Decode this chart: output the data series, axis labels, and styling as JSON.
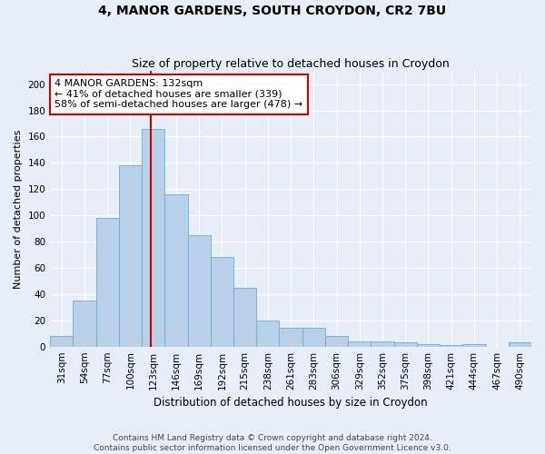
{
  "title1": "4, MANOR GARDENS, SOUTH CROYDON, CR2 7BU",
  "title2": "Size of property relative to detached houses in Croydon",
  "xlabel": "Distribution of detached houses by size in Croydon",
  "ylabel": "Number of detached properties",
  "categories": [
    "31sqm",
    "54sqm",
    "77sqm",
    "100sqm",
    "123sqm",
    "146sqm",
    "169sqm",
    "192sqm",
    "215sqm",
    "238sqm",
    "261sqm",
    "283sqm",
    "306sqm",
    "329sqm",
    "352sqm",
    "375sqm",
    "398sqm",
    "421sqm",
    "444sqm",
    "467sqm",
    "490sqm"
  ],
  "values": [
    8,
    35,
    98,
    138,
    166,
    116,
    85,
    68,
    45,
    20,
    14,
    14,
    8,
    4,
    4,
    3,
    2,
    1,
    2,
    0,
    3
  ],
  "bar_color": "#b8d0e8",
  "bar_edge_color": "#6aaed6",
  "bar_edge_width": 0.6,
  "annotation_text": "4 MANOR GARDENS: 132sqm\n← 41% of detached houses are smaller (339)\n58% of semi-detached houses are larger (478) →",
  "annotation_box_color": "#ffffff",
  "annotation_box_edge": "#cc0000",
  "background_color": "#e8eef8",
  "plot_bg_color": "#e8eef8",
  "grid_color": "#ffffff",
  "ylim": [
    0,
    210
  ],
  "yticks": [
    0,
    20,
    40,
    60,
    80,
    100,
    120,
    140,
    160,
    180,
    200
  ],
  "footer1": "Contains HM Land Registry data © Crown copyright and database right 2024.",
  "footer2": "Contains public sector information licensed under the Open Government Licence v3.0.",
  "title1_fontsize": 10,
  "title2_fontsize": 9,
  "xlabel_fontsize": 8.5,
  "ylabel_fontsize": 8,
  "tick_fontsize": 7.5,
  "footer_fontsize": 6.5,
  "annotation_fontsize": 8
}
